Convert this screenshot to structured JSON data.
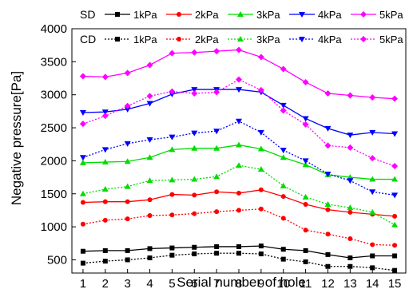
{
  "chart_data": {
    "type": "line",
    "title": "",
    "xlabel": "Serial number of hole",
    "ylabel": "Negative pressure[Pa]",
    "x": [
      1,
      2,
      3,
      4,
      5,
      6,
      7,
      8,
      9,
      10,
      11,
      12,
      13,
      14,
      15
    ],
    "xlim": [
      0.5,
      15.5
    ],
    "ylim": [
      300,
      4000
    ],
    "yticks": [
      500,
      1000,
      1500,
      2000,
      2500,
      3000,
      3500,
      4000
    ],
    "grid": false,
    "legend_placement": "top",
    "legend_groups": [
      {
        "label": "SD",
        "style": "solid"
      },
      {
        "label": "CD",
        "style": "dotted"
      }
    ],
    "series": [
      {
        "name": "1kPa",
        "group": "SD",
        "color": "#000000",
        "marker": "square",
        "style": "solid",
        "values": [
          630,
          640,
          640,
          670,
          680,
          690,
          700,
          700,
          710,
          660,
          640,
          580,
          530,
          560,
          560
        ]
      },
      {
        "name": "2kPa",
        "group": "SD",
        "color": "#ff0000",
        "marker": "circle",
        "style": "solid",
        "values": [
          1370,
          1380,
          1380,
          1410,
          1490,
          1480,
          1530,
          1510,
          1560,
          1460,
          1340,
          1260,
          1220,
          1190,
          1160
        ]
      },
      {
        "name": "3kPa",
        "group": "SD",
        "color": "#00dd00",
        "marker": "triangle-up",
        "style": "solid",
        "values": [
          1970,
          1980,
          1990,
          2050,
          2170,
          2190,
          2190,
          2240,
          2180,
          2050,
          1940,
          1790,
          1750,
          1720,
          1720
        ]
      },
      {
        "name": "4kPa",
        "group": "SD",
        "color": "#0000ff",
        "marker": "triangle-down",
        "style": "solid",
        "values": [
          2730,
          2740,
          2780,
          2870,
          3010,
          3080,
          3080,
          3080,
          3040,
          2840,
          2640,
          2490,
          2390,
          2430,
          2410
        ]
      },
      {
        "name": "5kPa",
        "group": "SD",
        "color": "#ff00ff",
        "marker": "diamond",
        "style": "solid",
        "values": [
          3280,
          3270,
          3330,
          3450,
          3630,
          3640,
          3660,
          3680,
          3570,
          3390,
          3190,
          3020,
          2990,
          2960,
          2940
        ]
      },
      {
        "name": "1kPa",
        "group": "CD",
        "color": "#000000",
        "marker": "square",
        "style": "dotted",
        "values": [
          450,
          480,
          500,
          530,
          570,
          590,
          600,
          600,
          590,
          510,
          470,
          400,
          400,
          380,
          340
        ]
      },
      {
        "name": "2kPa",
        "group": "CD",
        "color": "#ff0000",
        "marker": "circle",
        "style": "dotted",
        "values": [
          1040,
          1100,
          1120,
          1170,
          1180,
          1200,
          1230,
          1250,
          1270,
          1130,
          950,
          890,
          820,
          730,
          720
        ]
      },
      {
        "name": "3kPa",
        "group": "CD",
        "color": "#00dd00",
        "marker": "triangle-up",
        "style": "dotted",
        "values": [
          1500,
          1570,
          1610,
          1700,
          1710,
          1720,
          1760,
          1930,
          1870,
          1620,
          1450,
          1340,
          1290,
          1220,
          1030
        ]
      },
      {
        "name": "4kPa",
        "group": "CD",
        "color": "#0000ff",
        "marker": "triangle-down",
        "style": "dotted",
        "values": [
          2050,
          2170,
          2260,
          2320,
          2360,
          2420,
          2450,
          2600,
          2430,
          2160,
          2000,
          1800,
          1700,
          1530,
          1480
        ]
      },
      {
        "name": "5kPa",
        "group": "CD",
        "color": "#ff00ff",
        "marker": "diamond",
        "style": "dotted",
        "values": [
          2560,
          2680,
          2830,
          2980,
          3050,
          3020,
          3040,
          3230,
          3070,
          2760,
          2550,
          2230,
          2200,
          2040,
          1920
        ]
      }
    ]
  }
}
